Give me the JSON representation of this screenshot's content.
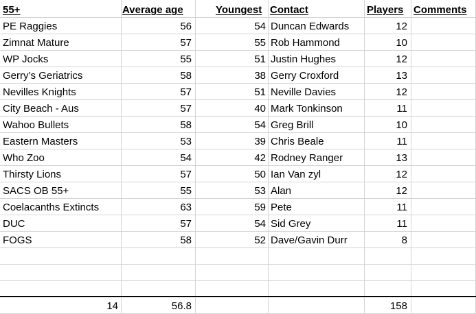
{
  "headers": [
    "55+",
    "Average age",
    "Youngest",
    "Contact",
    "Players",
    "Comments"
  ],
  "rows": [
    [
      "PE Raggies",
      "56",
      "54",
      "Duncan Edwards",
      "12",
      ""
    ],
    [
      "Zimnat Mature",
      "57",
      "55",
      "Rob Hammond",
      "10",
      ""
    ],
    [
      "WP Jocks",
      "55",
      "51",
      "Justin Hughes",
      "12",
      ""
    ],
    [
      "Gerry’s Geriatrics",
      "58",
      "38",
      "Gerry Croxford",
      "13",
      ""
    ],
    [
      "Nevilles Knights",
      "57",
      "51",
      "Neville Davies",
      "12",
      ""
    ],
    [
      "City Beach - Aus",
      "57",
      "40",
      "Mark Tonkinson",
      "11",
      ""
    ],
    [
      "Wahoo Bullets",
      "58",
      "54",
      "Greg Brill",
      "10",
      ""
    ],
    [
      "Eastern Masters",
      "53",
      "39",
      "Chris Beale",
      "11",
      ""
    ],
    [
      "Who Zoo",
      "54",
      "42",
      "Rodney Ranger",
      "13",
      ""
    ],
    [
      "Thirsty Lions",
      "57",
      "50",
      "Ian Van zyl",
      "12",
      ""
    ],
    [
      "SACS OB 55+",
      "55",
      "53",
      "Alan",
      "12",
      ""
    ],
    [
      "Coelacanths Extincts",
      "63",
      "59",
      "Pete",
      "11",
      ""
    ],
    [
      "DUC",
      "57",
      "54",
      "Sid Grey",
      "11",
      ""
    ],
    [
      "FOGS",
      "58",
      "52",
      "Dave/Gavin Durr",
      "8",
      ""
    ],
    [
      "",
      "",
      "",
      "",
      "",
      ""
    ],
    [
      "",
      "",
      "",
      "",
      "",
      ""
    ],
    [
      "",
      "",
      "",
      "",
      "",
      ""
    ]
  ],
  "totals": [
    "14",
    "56.8",
    "",
    "",
    "158",
    ""
  ]
}
